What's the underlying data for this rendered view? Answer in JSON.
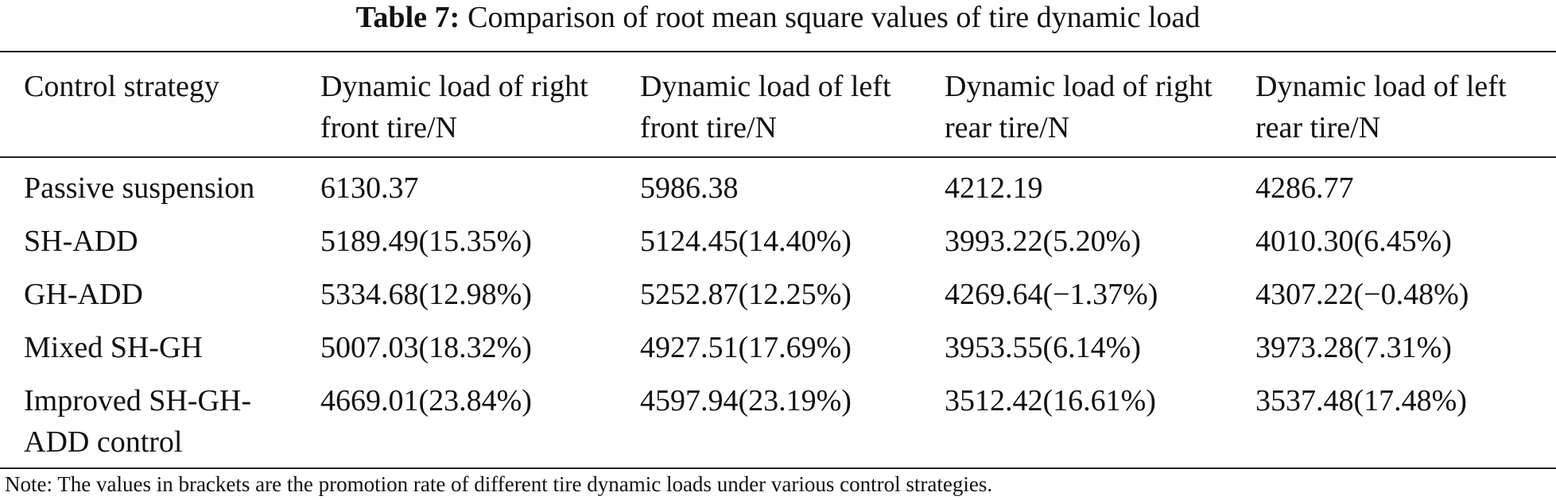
{
  "caption": {
    "label": "Table 7:",
    "text": "Comparison of root mean square values of tire dynamic load"
  },
  "table": {
    "headers": [
      "Control strategy",
      "Dynamic load of right front tire/N",
      "Dynamic load of left front tire/N",
      "Dynamic load of right rear tire/N",
      "Dynamic load of left rear tire/N"
    ],
    "rows": [
      [
        "Passive suspension",
        "6130.37",
        "5986.38",
        "4212.19",
        "4286.77"
      ],
      [
        "SH-ADD",
        "5189.49(15.35%)",
        "5124.45(14.40%)",
        "3993.22(5.20%)",
        "4010.30(6.45%)"
      ],
      [
        "GH-ADD",
        "5334.68(12.98%)",
        "5252.87(12.25%)",
        "4269.64(−1.37%)",
        "4307.22(−0.48%)"
      ],
      [
        "Mixed SH-GH",
        "5007.03(18.32%)",
        "4927.51(17.69%)",
        "3953.55(6.14%)",
        "3973.28(7.31%)"
      ],
      [
        "Improved SH-GH-ADD control",
        "4669.01(23.84%)",
        "4597.94(23.19%)",
        "3512.42(16.61%)",
        "3537.48(17.48%)"
      ]
    ]
  },
  "note": "Note: The values in brackets are the promotion rate of different tire dynamic loads under various control strategies."
}
